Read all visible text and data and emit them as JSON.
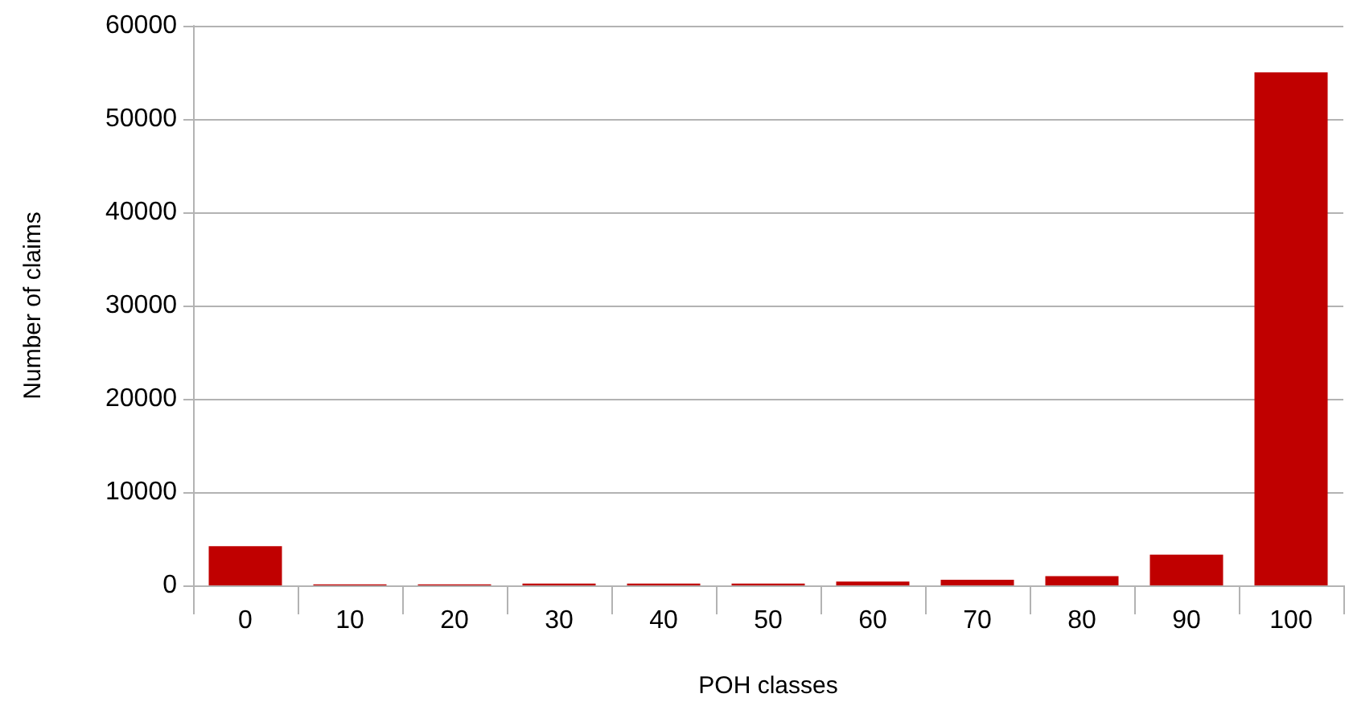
{
  "chart_data": {
    "type": "bar",
    "xlabel": "POH classes",
    "ylabel": "Number of claims",
    "categories": [
      "0",
      "10",
      "20",
      "30",
      "40",
      "50",
      "60",
      "70",
      "80",
      "90",
      "100"
    ],
    "values": [
      4200,
      100,
      100,
      200,
      200,
      200,
      400,
      600,
      1000,
      3300,
      55000
    ],
    "color": "#c00000",
    "ylim": [
      0,
      60000
    ],
    "yticks": [
      0,
      10000,
      20000,
      30000,
      40000,
      50000,
      60000
    ],
    "grid": "y"
  }
}
